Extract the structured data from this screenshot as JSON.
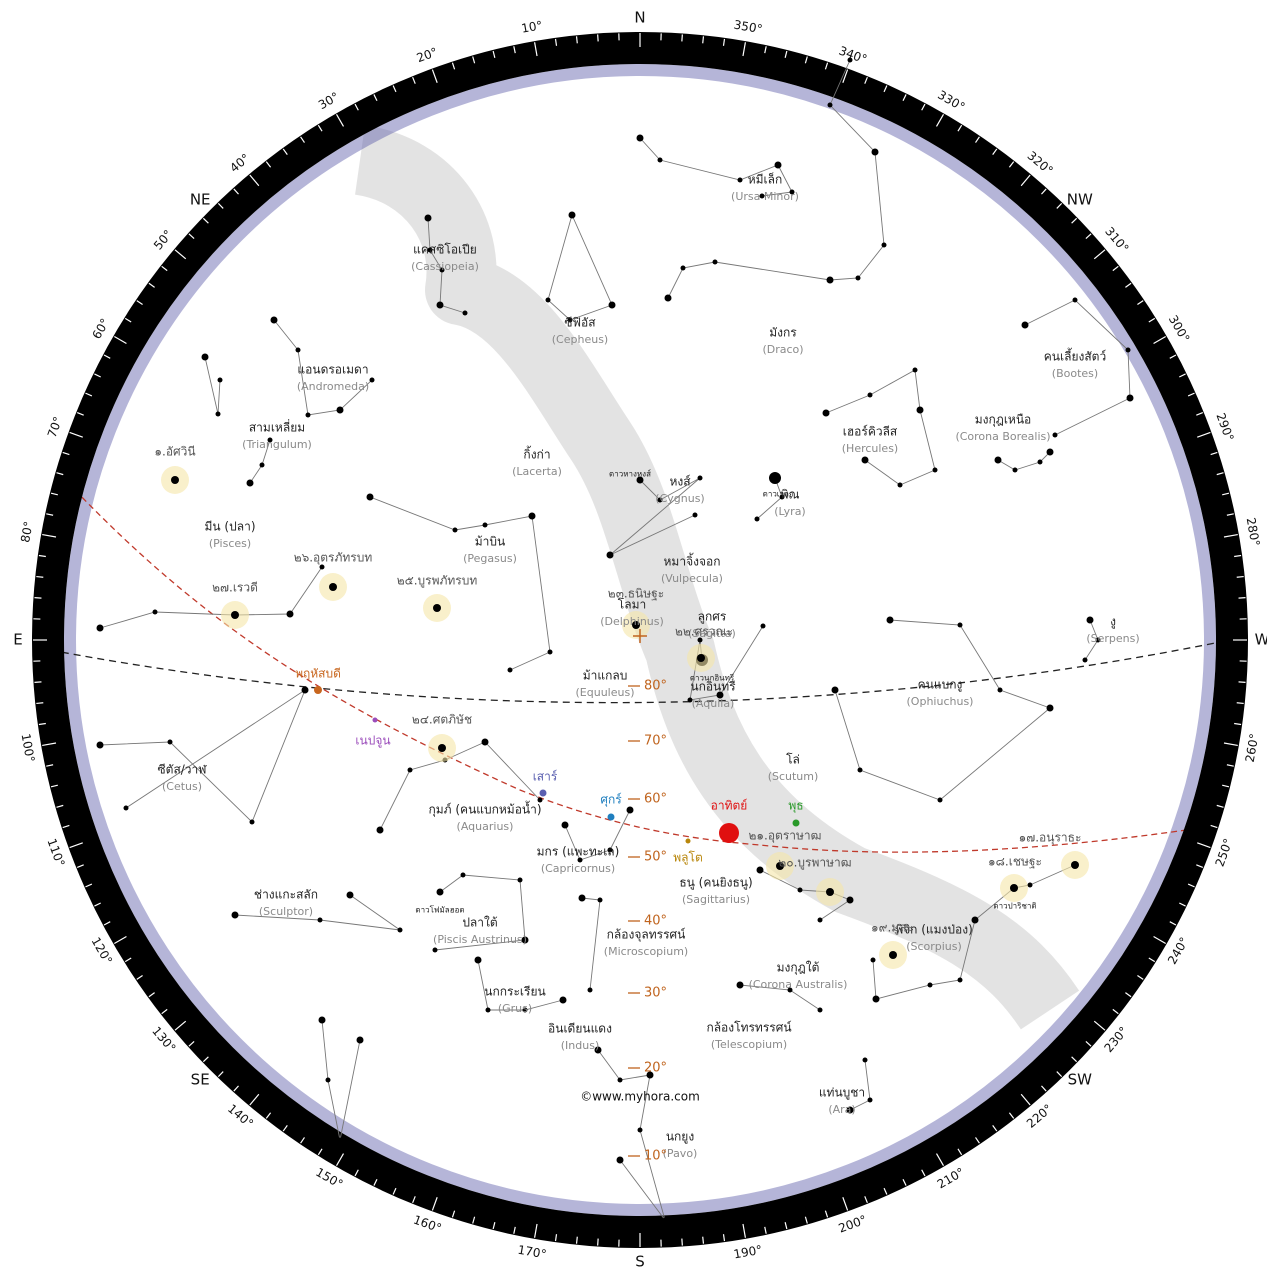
{
  "compass": [
    {
      "value": 0,
      "label": "N"
    },
    {
      "value": 45,
      "label": "NE"
    },
    {
      "value": 90,
      "label": "E"
    },
    {
      "value": 135,
      "label": "SE"
    },
    {
      "value": 180,
      "label": "S"
    },
    {
      "value": 225,
      "label": "SW"
    },
    {
      "value": 270,
      "label": "W"
    },
    {
      "value": 315,
      "label": "NW"
    }
  ],
  "azimuth_labels": [
    {
      "value": 10,
      "label": "10°"
    },
    {
      "value": 20,
      "label": "20°"
    },
    {
      "value": 30,
      "label": "30°"
    },
    {
      "value": 40,
      "label": "40°"
    },
    {
      "value": 50,
      "label": "50°"
    },
    {
      "value": 60,
      "label": "60°"
    },
    {
      "value": 70,
      "label": "70°"
    },
    {
      "value": 80,
      "label": "80°"
    },
    {
      "value": 100,
      "label": "100°"
    },
    {
      "value": 110,
      "label": "110°"
    },
    {
      "value": 120,
      "label": "120°"
    },
    {
      "value": 130,
      "label": "130°"
    },
    {
      "value": 140,
      "label": "140°"
    },
    {
      "value": 150,
      "label": "150°"
    },
    {
      "value": 160,
      "label": "160°"
    },
    {
      "value": 170,
      "label": "170°"
    },
    {
      "value": 190,
      "label": "190°"
    },
    {
      "value": 200,
      "label": "200°"
    },
    {
      "value": 210,
      "label": "210°"
    },
    {
      "value": 220,
      "label": "220°"
    },
    {
      "value": 230,
      "label": "230°"
    },
    {
      "value": 240,
      "label": "240°"
    },
    {
      "value": 250,
      "label": "250°"
    },
    {
      "value": 260,
      "label": "260°"
    },
    {
      "value": 280,
      "label": "280°"
    },
    {
      "value": 290,
      "label": "290°"
    },
    {
      "value": 300,
      "label": "300°"
    },
    {
      "value": 310,
      "label": "310°"
    },
    {
      "value": 320,
      "label": "320°"
    },
    {
      "value": 330,
      "label": "330°"
    },
    {
      "value": 340,
      "label": "340°"
    },
    {
      "value": 350,
      "label": "350°"
    }
  ],
  "altitude_labels": [
    "80°",
    "70°",
    "60°",
    "50°",
    "40°",
    "30°",
    "20°",
    "10°"
  ],
  "constellations": [
    {
      "name": "หมีเล็ก",
      "latin": "(Ursa Minor)"
    },
    {
      "name": "แคสซิโอเปีย",
      "latin": "(Cassiopeia)"
    },
    {
      "name": "ซีฟิอัส",
      "latin": "(Cepheus)"
    },
    {
      "name": "มังกร",
      "latin": "(Draco)"
    },
    {
      "name": "คนเลี้ยงสัตว์",
      "latin": "(Bootes)"
    },
    {
      "name": "แอนดรอเมดา",
      "latin": "(Andromeda)"
    },
    {
      "name": "สามเหลี่ยม",
      "latin": "(Triangulum)"
    },
    {
      "name": "มงกุฎเหนือ",
      "latin": "(Corona Borealis)"
    },
    {
      "name": "กิ้งก่า",
      "latin": "(Lacerta)"
    },
    {
      "name": "เฮอร์คิวลีส",
      "latin": "(Hercules)"
    },
    {
      "name": "หงส์",
      "latin": "(Cygnus)"
    },
    {
      "name": "พิณ",
      "latin": "(Lyra)"
    },
    {
      "name": "มีน (ปลา)",
      "latin": "(Pisces)"
    },
    {
      "name": "ม้าบิน",
      "latin": "(Pegasus)"
    },
    {
      "name": "หมาจิ้งจอก",
      "latin": "(Vulpecula)"
    },
    {
      "name": "โลมา",
      "latin": "(Delphinus)"
    },
    {
      "name": "ลูกศร",
      "latin": "(Sagitta)"
    },
    {
      "name": "งู",
      "latin": "(Serpens)"
    },
    {
      "name": "ม้าแกลบ",
      "latin": "(Equuleus)"
    },
    {
      "name": "นกอินทรี",
      "latin": "(Aquila)"
    },
    {
      "name": "คนแบกงู",
      "latin": "(Ophiuchus)"
    },
    {
      "name": "ซีตัส/วาฬ",
      "latin": "(Cetus)"
    },
    {
      "name": "โล่",
      "latin": "(Scutum)"
    },
    {
      "name": "กุมภ์ (คนแบกหม้อน้ำ)",
      "latin": "(Aquarius)"
    },
    {
      "name": "มกร (แพะทะเล)",
      "latin": "(Capricornus)"
    },
    {
      "name": "ธนู (คนยิงธนู)",
      "latin": "(Sagittarius)"
    },
    {
      "name": "ช่างแกะสลัก",
      "latin": "(Sculptor)"
    },
    {
      "name": "ปลาใต้",
      "latin": "(Piscis Austrinus)"
    },
    {
      "name": "พิจิก (แมงป่อง)",
      "latin": "(Scorpius)"
    },
    {
      "name": "กล้องจุลทรรศน์",
      "latin": "(Microscopium)"
    },
    {
      "name": "มงกุฎใต้",
      "latin": "(Corona Australis)"
    },
    {
      "name": "นกกระเรียน",
      "latin": "(Grus)"
    },
    {
      "name": "อินเดียนแดง",
      "latin": "(Indus)"
    },
    {
      "name": "กล้องโทรทรรศน์",
      "latin": "(Telescopium)"
    },
    {
      "name": "แท่นบูชา",
      "latin": "(Ara)"
    },
    {
      "name": "นกยูง",
      "latin": "(Pavo)"
    }
  ],
  "nakshatras": [
    "๑.อัศวินี",
    "๒๗.เรวดี",
    "๒๖.อุตรภัทรบท",
    "๒๕.บูรพภัทรบท",
    "๒๔.ศตภิษัช",
    "๒๓.ธนิษฐะ",
    "๒๒.ศรวณะ",
    "๒๑.อุตราษาฒ",
    "๒๐.บูรพาษาฒ",
    "๑๙.มูละ",
    "๑๘.เชษฐะ",
    "๑๗.อนุราธะ"
  ],
  "star_names": [
    "ดาวหางหงส์",
    "ดาวเวกา",
    "ดาวนกอินทรี",
    "ดาวโฟมัลฮอต",
    "ดาวปาริชาติ"
  ],
  "planets": [
    {
      "name": "พฤหัสบดี",
      "color": "#c8661e"
    },
    {
      "name": "เนปจูน",
      "color": "#9b4dbb"
    },
    {
      "name": "เสาร์",
      "color": "#5a5fb0"
    },
    {
      "name": "ศุกร์",
      "color": "#1f7fbf"
    },
    {
      "name": "อาทิตย์",
      "color": "#e01010"
    },
    {
      "name": "พุธ",
      "color": "#2a9a2a"
    },
    {
      "name": "พลูโต",
      "color": "#b8860b"
    }
  ],
  "copyright": "©www.myhora.com"
}
